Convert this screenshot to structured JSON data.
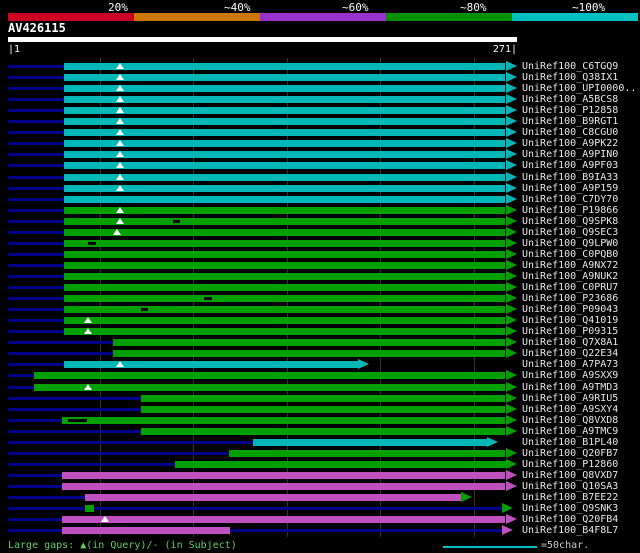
{
  "colors": {
    "background": "#000000",
    "cyan": "#00b7b7",
    "green": "#00a000",
    "magenta": "#c050c0",
    "navy": "#00008b",
    "red": "#cc0022",
    "orange": "#cc7700",
    "purple": "#9932cc",
    "legend_green": "#009000",
    "legend_cyan": "#00c0c0",
    "white": "#ffffff",
    "label_text": "#e8e8e8",
    "grid": "#333333",
    "footer_green": "#66cc66",
    "gap_triangle": "#ffffff",
    "dash": "#000000"
  },
  "header": {
    "query_name": "AV426115",
    "ruler_start_label": "|1",
    "ruler_end_label": "271|",
    "legend": [
      {
        "label": "20%",
        "color_key": "red"
      },
      {
        "label": "~40%",
        "color_key": "orange"
      },
      {
        "label": "~60%",
        "color_key": "purple"
      },
      {
        "label": "~80%",
        "color_key": "legend_green"
      },
      {
        "label": "~100%",
        "color_key": "legend_cyan"
      }
    ]
  },
  "footer": {
    "gaps_note": "Large gaps: ▲(in Query)/- (in Subject)",
    "scale_note": "=50char."
  },
  "chart_data": {
    "type": "bar",
    "orientation": "horizontal",
    "title": "AV426115",
    "x_range": [
      1,
      271
    ],
    "gridline_every": 50,
    "identity_colors": {
      "cyan": "~100%",
      "green": "~80%",
      "magenta": "~60%"
    },
    "rows": [
      {
        "label": "UniRef100_C6TGQ9",
        "color": "cyan",
        "bar": [
          31,
          267
        ],
        "gaps": [
          61
        ]
      },
      {
        "label": "UniRef100_Q38IX1",
        "color": "cyan",
        "bar": [
          31,
          267
        ],
        "gaps": [
          61
        ]
      },
      {
        "label": "UniRef100_UPI0000..",
        "color": "cyan",
        "bar": [
          31,
          267
        ],
        "gaps": [
          61
        ]
      },
      {
        "label": "UniRef100_A5BCS8",
        "color": "cyan",
        "bar": [
          31,
          267
        ],
        "gaps": [
          61
        ]
      },
      {
        "label": "UniRef100_P12858",
        "color": "cyan",
        "bar": [
          31,
          267
        ],
        "gaps": [
          61
        ]
      },
      {
        "label": "UniRef100_B9RGT1",
        "color": "cyan",
        "bar": [
          31,
          267
        ],
        "gaps": [
          61
        ]
      },
      {
        "label": "UniRef100_C8CGU0",
        "color": "cyan",
        "bar": [
          31,
          267
        ],
        "gaps": [
          61
        ]
      },
      {
        "label": "UniRef100_A9PK22",
        "color": "cyan",
        "bar": [
          31,
          267
        ],
        "gaps": [
          61
        ]
      },
      {
        "label": "UniRef100_A9PIN0",
        "color": "cyan",
        "bar": [
          31,
          267
        ],
        "gaps": [
          61
        ]
      },
      {
        "label": "UniRef100_A9PF03",
        "color": "cyan",
        "bar": [
          31,
          267
        ],
        "gaps": [
          61
        ]
      },
      {
        "label": "UniRef100_B9IA33",
        "color": "cyan",
        "bar": [
          31,
          267
        ],
        "gaps": [
          61
        ]
      },
      {
        "label": "UniRef100_A9P159",
        "color": "cyan",
        "bar": [
          31,
          267
        ],
        "gaps": [
          61
        ]
      },
      {
        "label": "UniRef100_C7DY70",
        "color": "cyan",
        "bar": [
          31,
          267
        ]
      },
      {
        "label": "UniRef100_P19866",
        "color": "green",
        "bar": [
          31,
          267
        ],
        "gaps": [
          61
        ]
      },
      {
        "label": "UniRef100_Q9SPK8",
        "color": "green",
        "bar": [
          31,
          267
        ],
        "gaps": [
          61
        ],
        "dashes": [
          [
            89,
            93
          ]
        ]
      },
      {
        "label": "UniRef100_Q9SEC3",
        "color": "green",
        "bar": [
          31,
          267
        ],
        "gaps": [
          59
        ]
      },
      {
        "label": "UniRef100_Q9LPW0",
        "color": "green",
        "bar": [
          31,
          267
        ],
        "dashes": [
          [
            44,
            48
          ]
        ]
      },
      {
        "label": "UniRef100_C0PQB0",
        "color": "green",
        "bar": [
          31,
          267
        ]
      },
      {
        "label": "UniRef100_A9NX72",
        "color": "green",
        "bar": [
          31,
          267
        ]
      },
      {
        "label": "UniRef100_A9NUK2",
        "color": "green",
        "bar": [
          31,
          267
        ]
      },
      {
        "label": "UniRef100_C0PRU7",
        "color": "green",
        "bar": [
          31,
          267
        ]
      },
      {
        "label": "UniRef100_P23686",
        "color": "green",
        "bar": [
          31,
          267
        ],
        "dashes": [
          [
            106,
            110
          ]
        ]
      },
      {
        "label": "UniRef100_P09043",
        "color": "green",
        "bar": [
          31,
          267
        ],
        "dashes": [
          [
            72,
            76
          ]
        ]
      },
      {
        "label": "UniRef100_Q41019",
        "color": "green",
        "bar": [
          31,
          267
        ],
        "gaps": [
          44
        ]
      },
      {
        "label": "UniRef100_P09315",
        "color": "green",
        "bar": [
          31,
          267
        ],
        "gaps": [
          44
        ]
      },
      {
        "label": "UniRef100_Q7X8A1",
        "color": "green",
        "bar": [
          57,
          267
        ]
      },
      {
        "label": "UniRef100_Q22E34",
        "color": "green",
        "bar": [
          57,
          267
        ]
      },
      {
        "label": "UniRef100_A7PA73",
        "color": "cyan",
        "bar": [
          31,
          188
        ],
        "gaps": [
          61
        ]
      },
      {
        "label": "UniRef100_A9SXX9",
        "color": "green",
        "bar": [
          15,
          267
        ]
      },
      {
        "label": "UniRef100_A9TMD3",
        "color": "green",
        "bar": [
          15,
          267
        ],
        "gaps": [
          44
        ]
      },
      {
        "label": "UniRef100_A9RIU5",
        "color": "green",
        "bar": [
          72,
          267
        ]
      },
      {
        "label": "UniRef100_A9SXY4",
        "color": "green",
        "bar": [
          72,
          267
        ]
      },
      {
        "label": "UniRef100_Q8VXD8",
        "color": "green",
        "bar": [
          30,
          267
        ],
        "dashes": [
          [
            33,
            43
          ]
        ]
      },
      {
        "label": "UniRef100_A9TMC9",
        "color": "green",
        "bar": [
          72,
          267
        ]
      },
      {
        "label": "UniRef100_B1PL40",
        "color": "cyan",
        "bar": [
          132,
          257
        ]
      },
      {
        "label": "UniRef100_Q20FB7",
        "color": "green",
        "bar": [
          119,
          267
        ]
      },
      {
        "label": "UniRef100_P12860",
        "color": "green",
        "bar": [
          90,
          267
        ]
      },
      {
        "label": "UniRef100_Q8VXD7",
        "color": "magenta",
        "bar": [
          30,
          267
        ]
      },
      {
        "label": "UniRef100_Q10SA3",
        "color": "magenta",
        "bar": [
          30,
          267
        ]
      },
      {
        "label": "UniRef100_B7EE22",
        "color": "magenta",
        "bar": [
          42,
          243
        ],
        "arrow": "green"
      },
      {
        "label": "UniRef100_Q9SNK3",
        "color": "green",
        "bar": [
          42,
          47
        ],
        "line": [
          47,
          265
        ],
        "arrow": "green"
      },
      {
        "label": "UniRef100_Q20FB4",
        "color": "magenta",
        "bar": [
          30,
          267
        ],
        "gaps": [
          53
        ]
      },
      {
        "label": "UniRef100_B4F8L7",
        "color": "magenta",
        "bar": [
          30,
          120
        ],
        "line": [
          120,
          265
        ]
      }
    ]
  }
}
